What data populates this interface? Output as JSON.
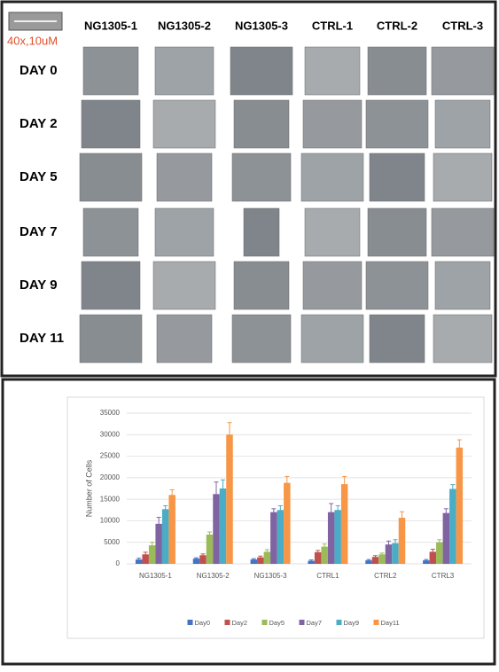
{
  "panel": {
    "scale_label": "40x,10uM",
    "columns": [
      "NG1305-1",
      "NG1305-2",
      "NG1305-3",
      "CTRL-1",
      "CTRL-2",
      "CTRL-3"
    ],
    "rows": [
      "DAY 0",
      "DAY 2",
      "DAY 5",
      "DAY 7",
      "DAY 9",
      "DAY 11"
    ]
  },
  "chart_data": {
    "type": "bar",
    "y_label": "Number of Cells",
    "categories": [
      "NG1305-1",
      "NG1305-2",
      "NG1305-3",
      "CTRL1",
      "CTRL2",
      "CTRL3"
    ],
    "series": [
      {
        "name": "Day0",
        "color": "#4472c4",
        "values": [
          1000,
          1200,
          1000,
          700,
          800,
          800
        ],
        "errors": [
          300,
          200,
          200,
          200,
          200,
          200
        ]
      },
      {
        "name": "Day2",
        "color": "#c0504d",
        "values": [
          2200,
          2000,
          1500,
          2700,
          1600,
          2800
        ],
        "errors": [
          500,
          300,
          300,
          400,
          300,
          600
        ]
      },
      {
        "name": "Day5",
        "color": "#9bbb59",
        "values": [
          4300,
          6800,
          2800,
          4000,
          2200,
          5000
        ],
        "errors": [
          700,
          600,
          500,
          600,
          300,
          600
        ]
      },
      {
        "name": "Day7",
        "color": "#8064a2",
        "values": [
          9300,
          16200,
          12000,
          12000,
          4500,
          11800
        ],
        "errors": [
          1500,
          2800,
          800,
          2000,
          800,
          1000
        ]
      },
      {
        "name": "Day9",
        "color": "#4bacc6",
        "values": [
          12700,
          17500,
          12500,
          12500,
          4800,
          17400
        ],
        "errors": [
          800,
          2000,
          1000,
          1000,
          800,
          1000
        ]
      },
      {
        "name": "Day11",
        "color": "#f79646",
        "values": [
          16000,
          30000,
          18800,
          18500,
          10700,
          27000
        ],
        "errors": [
          1200,
          2800,
          1500,
          1800,
          1400,
          1800
        ]
      }
    ],
    "ylim": [
      0,
      35000
    ],
    "yticks": [
      0,
      5000,
      10000,
      15000,
      20000,
      25000,
      30000,
      35000
    ],
    "grid": true,
    "legend": "bottom"
  }
}
